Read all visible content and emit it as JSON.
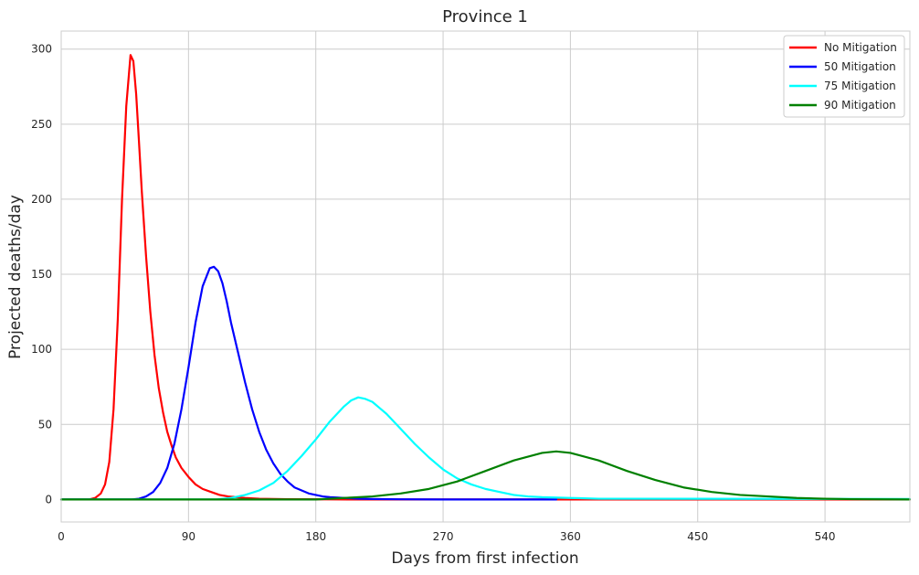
{
  "chart_data": {
    "type": "line",
    "title": "Province 1",
    "xlabel": "Days from first infection",
    "ylabel": "Projected deaths/day",
    "xlim": [
      0,
      600
    ],
    "ylim": [
      -15,
      312
    ],
    "xticks": [
      0,
      90,
      180,
      270,
      360,
      450,
      540
    ],
    "yticks": [
      0,
      50,
      100,
      150,
      200,
      250,
      300
    ],
    "grid": true,
    "legend_position": "top-right",
    "series": [
      {
        "name": "No Mitigation",
        "color": "#ff0000",
        "x": [
          0,
          20,
          24,
          28,
          31,
          34,
          37,
          40,
          43,
          46,
          49,
          51,
          53,
          55,
          57,
          60,
          63,
          66,
          69,
          72,
          75,
          78,
          81,
          85,
          90,
          95,
          100,
          106,
          112,
          118,
          124,
          130,
          140,
          160,
          190,
          210,
          600
        ],
        "y": [
          0,
          0,
          1,
          4,
          10,
          25,
          60,
          120,
          200,
          262,
          296,
          292,
          270,
          238,
          205,
          162,
          125,
          96,
          74,
          58,
          45,
          36,
          28,
          21,
          15,
          10,
          7,
          5,
          3,
          2,
          1.5,
          1,
          0.5,
          0.2,
          0.05,
          0,
          0
        ]
      },
      {
        "name": "50 Mitigation",
        "color": "#0000ff",
        "x": [
          0,
          50,
          55,
          60,
          65,
          70,
          75,
          80,
          85,
          90,
          95,
          100,
          105,
          108,
          111,
          114,
          117,
          120,
          125,
          130,
          135,
          140,
          145,
          150,
          155,
          160,
          165,
          170,
          175,
          180,
          185,
          190,
          200,
          210,
          220,
          240,
          270,
          350
        ],
        "y": [
          0,
          0,
          0.5,
          2,
          5,
          11,
          21,
          37,
          60,
          88,
          118,
          142,
          154,
          155,
          152,
          144,
          132,
          118,
          98,
          78,
          60,
          45,
          33,
          24,
          17,
          12,
          8,
          6,
          4,
          3,
          2,
          1.5,
          1,
          0.5,
          0.3,
          0.1,
          0,
          0
        ]
      },
      {
        "name": "75 Mitigation",
        "color": "#00ffff",
        "x": [
          0,
          110,
          120,
          130,
          140,
          150,
          160,
          170,
          180,
          190,
          200,
          205,
          210,
          215,
          220,
          225,
          230,
          240,
          250,
          260,
          270,
          280,
          290,
          300,
          310,
          320,
          330,
          340,
          360,
          380,
          600
        ],
        "y": [
          0,
          0,
          1,
          3,
          6,
          11,
          19,
          29,
          40,
          52,
          62,
          66,
          68,
          67,
          65,
          61,
          57,
          47,
          37,
          28,
          20,
          14,
          10,
          7,
          5,
          3,
          2,
          1.5,
          1,
          0.5,
          0.3
        ]
      },
      {
        "name": "90 Mitigation",
        "color": "#008000",
        "x": [
          0,
          180,
          200,
          220,
          240,
          260,
          280,
          300,
          320,
          340,
          350,
          360,
          380,
          400,
          420,
          440,
          460,
          480,
          500,
          520,
          540,
          560,
          600
        ],
        "y": [
          0,
          0,
          1,
          2,
          4,
          7,
          12,
          19,
          26,
          31,
          32,
          31,
          26,
          19,
          13,
          8,
          5,
          3,
          2,
          1,
          0.5,
          0.2,
          0
        ]
      }
    ]
  }
}
